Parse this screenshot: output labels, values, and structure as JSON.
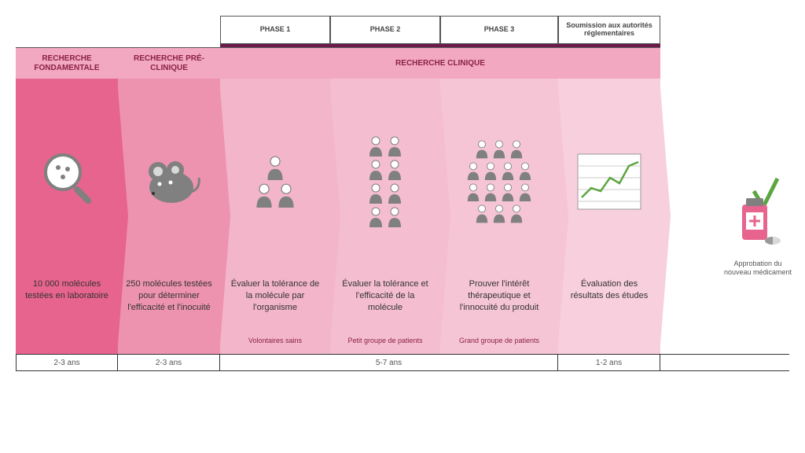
{
  "colors": {
    "stage1_bg": "#e7648e",
    "stage2_bg": "#ed93b0",
    "stage3_bg": "#f3b5c9",
    "stage4_bg": "#f4bdd0",
    "stage5_bg": "#f6c5d5",
    "stage6_bg": "#f8cfdc",
    "header12_bg": "#f2a8c1",
    "header3_bg": "#f2a8c1",
    "purple": "#6b1a4a",
    "title_color": "#8b2146",
    "icon_gray": "#808080",
    "icon_light": "#d9d9d9",
    "green": "#5ca641"
  },
  "widths": {
    "stage1": 130,
    "stage2": 130,
    "stage3": 140,
    "stage4": 140,
    "stage5": 150,
    "stage6": 130,
    "approval": 90
  },
  "top_labels": {
    "phase1": "PHASE 1",
    "phase2": "PHASE 2",
    "phase3": "PHASE 3",
    "submission": "Soumission aux autorités réglementaires"
  },
  "headers": {
    "h1": "RECHERCHE FONDAMENTALE",
    "h2": "RECHERCHE PRÉ-CLINIQUE",
    "h3": "RECHERCHE CLINIQUE"
  },
  "stages": {
    "s1": {
      "desc": "10 000 molécules testées en laboratoire",
      "sub": ""
    },
    "s2": {
      "desc": "250 molécules testées pour déterminer l'efficacité et l'inocuité",
      "sub": ""
    },
    "s3": {
      "desc": "Évaluer la tolérance de la molécule par l'organisme",
      "sub": "Volontaires sains"
    },
    "s4": {
      "desc": "Évaluer la tolérance et l'efficacité de la molécule",
      "sub": "Petit groupe de patients"
    },
    "s5": {
      "desc": "Prouver l'intérêt thérapeutique et l'innocuité du produit",
      "sub": "Grand groupe de patients"
    },
    "s6": {
      "desc": "Évaluation des résultats des études",
      "sub": ""
    }
  },
  "durations": {
    "d1": "2-3 ans",
    "d2": "2-3 ans",
    "d3": "5-7 ans",
    "d4": "1-2 ans"
  },
  "approval": "Approbation du nouveau médicament",
  "people_counts": {
    "phase1": [
      1,
      2
    ],
    "phase2": [
      2,
      2,
      2,
      2
    ],
    "phase3": [
      3,
      4,
      4,
      3
    ]
  }
}
